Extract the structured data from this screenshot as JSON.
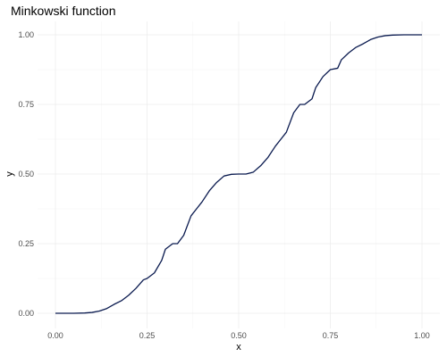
{
  "chart_data": {
    "type": "line",
    "title": "Minkowski function",
    "xlabel": "x",
    "ylabel": "y",
    "xlim": [
      0,
      1
    ],
    "ylim": [
      0,
      1
    ],
    "x_ticks": [
      0,
      0.25,
      0.5,
      0.75,
      1
    ],
    "x_tick_labels": [
      "0.00",
      "0.25",
      "0.50",
      "0.75",
      "1.00"
    ],
    "y_ticks": [
      0,
      0.25,
      0.5,
      0.75,
      1
    ],
    "y_tick_labels": [
      "0.00",
      "0.25",
      "0.50",
      "0.75",
      "1.00"
    ],
    "grid": true,
    "legend": "none",
    "series": [
      {
        "color": "#0a1a4f",
        "x": [
          0,
          0.05,
          0.08,
          0.1,
          0.12,
          0.14,
          0.16,
          0.18,
          0.2,
          0.22,
          0.24,
          0.25,
          0.27,
          0.29,
          0.3,
          0.32,
          0.333,
          0.35,
          0.37,
          0.385,
          0.4,
          0.42,
          0.44,
          0.46,
          0.48,
          0.5,
          0.52,
          0.54,
          0.56,
          0.58,
          0.6,
          0.615,
          0.63,
          0.65,
          0.667,
          0.68,
          0.7,
          0.71,
          0.73,
          0.75,
          0.77,
          0.78,
          0.8,
          0.82,
          0.84,
          0.86,
          0.88,
          0.9,
          0.92,
          0.95,
          1.0
        ],
        "y": [
          0,
          0,
          0.001,
          0.003,
          0.008,
          0.017,
          0.032,
          0.045,
          0.065,
          0.09,
          0.12,
          0.125,
          0.145,
          0.19,
          0.23,
          0.25,
          0.25,
          0.28,
          0.35,
          0.375,
          0.4,
          0.44,
          0.47,
          0.493,
          0.499,
          0.5,
          0.5,
          0.507,
          0.53,
          0.56,
          0.6,
          0.625,
          0.65,
          0.72,
          0.75,
          0.75,
          0.77,
          0.81,
          0.85,
          0.875,
          0.88,
          0.91,
          0.935,
          0.955,
          0.968,
          0.983,
          0.992,
          0.997,
          0.999,
          1.0,
          1.0
        ]
      }
    ]
  }
}
